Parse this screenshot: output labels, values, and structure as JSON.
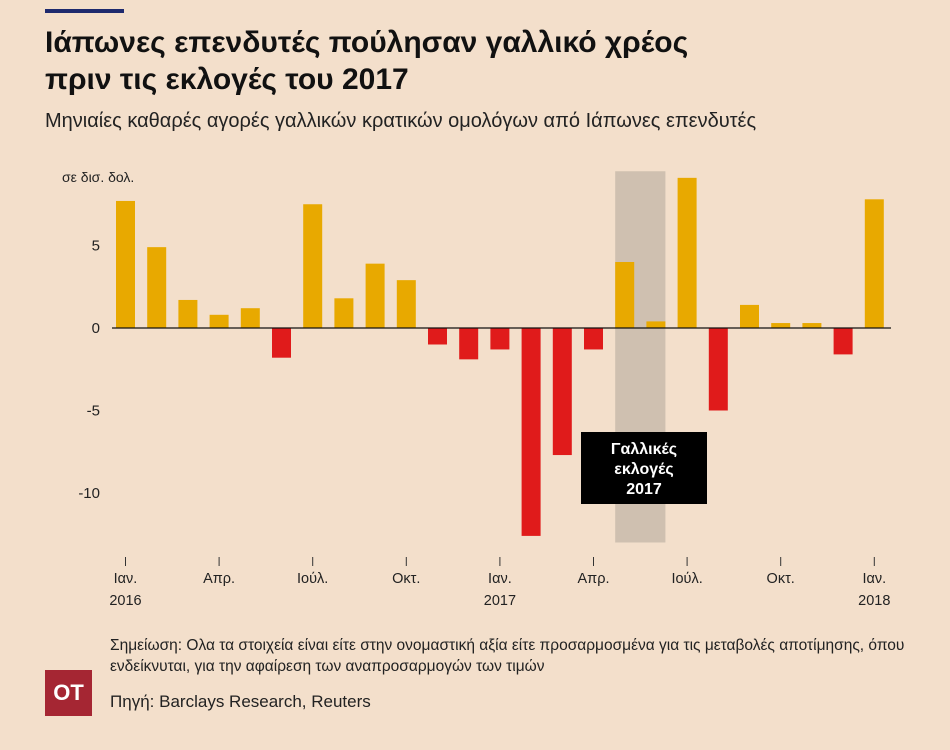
{
  "header": {
    "title_line1": "Ιάπωνες επενδυτές πούλησαν γαλλικό χρέος",
    "title_line2": "πριν τις εκλογές του 2017",
    "subtitle": "Μηνιαίες καθαρές αγορές γαλλικών κρατικών ομολόγων από Ιάπωνες επενδυτές"
  },
  "chart_data": {
    "type": "bar",
    "unit_label": "σε δισ. δολ.",
    "categories": [
      "2016-01",
      "2016-02",
      "2016-03",
      "2016-04",
      "2016-05",
      "2016-06",
      "2016-07",
      "2016-08",
      "2016-09",
      "2016-10",
      "2016-11",
      "2016-12",
      "2017-01",
      "2017-02",
      "2017-03",
      "2017-04",
      "2017-05",
      "2017-06",
      "2017-07",
      "2017-08",
      "2017-09",
      "2017-10",
      "2017-11",
      "2017-12",
      "2018-01"
    ],
    "values": [
      7.7,
      4.9,
      1.7,
      0.8,
      1.2,
      -1.8,
      7.5,
      1.8,
      3.9,
      2.9,
      -1.0,
      -1.9,
      -1.3,
      -12.6,
      -7.7,
      -1.3,
      4.0,
      0.4,
      9.1,
      -5.0,
      1.4,
      0.3,
      0.3,
      -1.6,
      7.8
    ],
    "ylim": [
      -13,
      9.5
    ],
    "yticks": [
      5,
      0,
      -5,
      -10
    ],
    "ytick_labels": [
      "5",
      "0",
      "-5",
      "-10"
    ],
    "xticks": [
      {
        "index": 0,
        "line1": "Ιαν.",
        "line2": "2016"
      },
      {
        "index": 3,
        "line1": "Απρ.",
        "line2": ""
      },
      {
        "index": 6,
        "line1": "Ιούλ.",
        "line2": ""
      },
      {
        "index": 9,
        "line1": "Οκτ.",
        "line2": ""
      },
      {
        "index": 12,
        "line1": "Ιαν.",
        "line2": "2017"
      },
      {
        "index": 15,
        "line1": "Απρ.",
        "line2": ""
      },
      {
        "index": 18,
        "line1": "Ιούλ.",
        "line2": ""
      },
      {
        "index": 21,
        "line1": "Οκτ.",
        "line2": ""
      },
      {
        "index": 24,
        "line1": "Ιαν.",
        "line2": "2018"
      }
    ],
    "highlight": {
      "start_index": 16,
      "end_index": 17,
      "label_lines": [
        "Γαλλικές",
        "εκλογές",
        "2017"
      ]
    },
    "colors": {
      "positive": "#e8a900",
      "negative": "#e01b1b",
      "highlight": "#cfc0b0",
      "annotation_bg": "#000000"
    }
  },
  "footer": {
    "note": "Σημείωση: Ολα τα στοιχεία είναι είτε στην ονομαστική αξία είτε προσαρμοσμένα για τις μεταβολές αποτίμησης, όπου ενδείκνυται, για την αφαίρεση των αναπροσαρμογών των τιμών",
    "source": "Πηγή: Barclays Research, Reuters",
    "logo_text": "ΟΤ"
  }
}
